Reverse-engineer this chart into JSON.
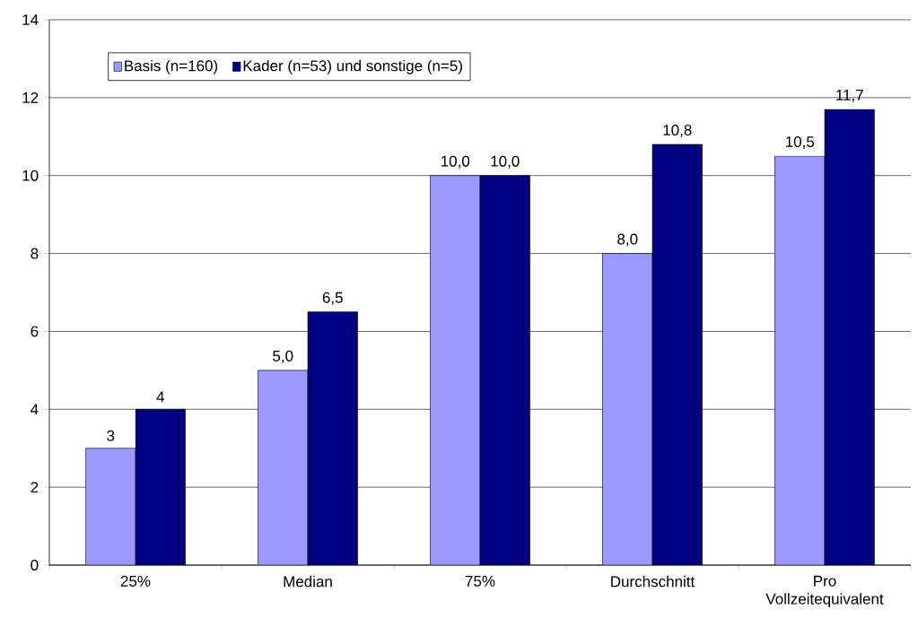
{
  "chart_data": {
    "type": "bar",
    "categories": [
      "25%",
      "Median",
      "75%",
      "Durchschnitt",
      "Pro Vollzeitequivalent"
    ],
    "series": [
      {
        "name": "Basis (n=160)",
        "color": "#9999ff",
        "values": [
          3,
          5.0,
          10.0,
          8.0,
          10.5
        ],
        "value_labels": [
          "3",
          "5,0",
          "10,0",
          "8,0",
          "10,5"
        ]
      },
      {
        "name": "Kader (n=53) und sonstige (n=5)",
        "color": "#000080",
        "values": [
          4,
          6.5,
          10.0,
          10.8,
          11.7
        ],
        "value_labels": [
          "4",
          "6,5",
          "10,0",
          "10,8",
          "11,7"
        ]
      }
    ],
    "ylim": [
      0,
      14
    ],
    "yticks": [
      0,
      2,
      4,
      6,
      8,
      10,
      12,
      14
    ],
    "grid": "y",
    "legend": "top left"
  }
}
